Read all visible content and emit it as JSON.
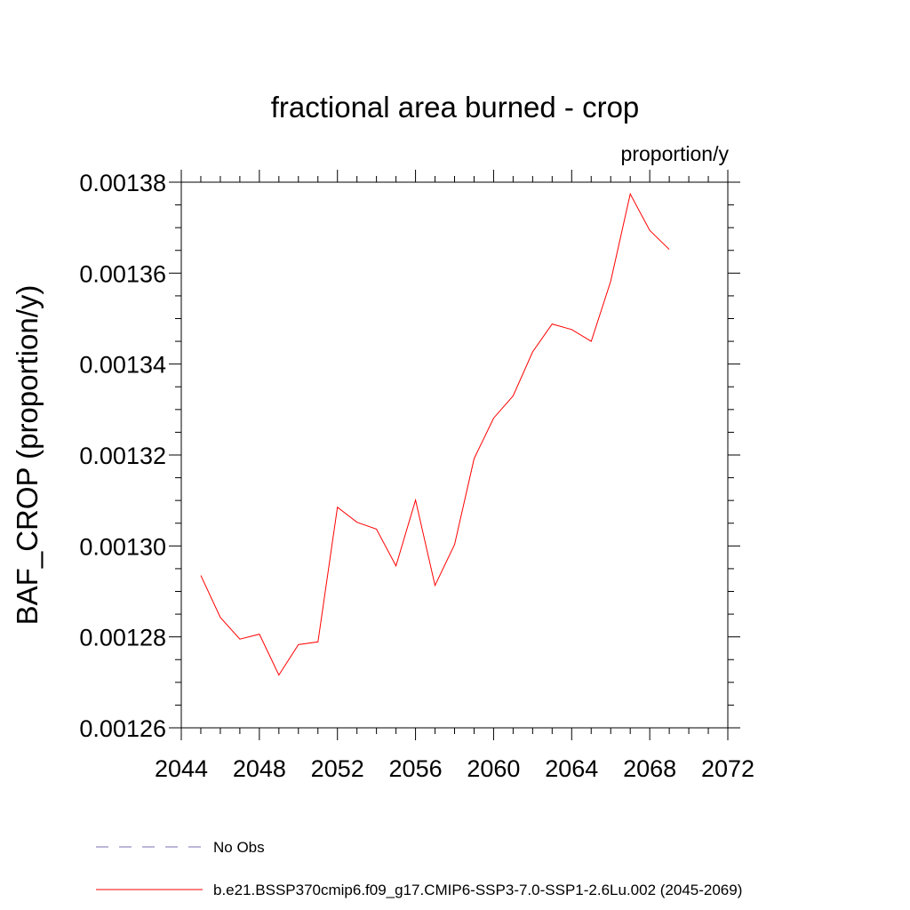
{
  "chart_data": {
    "type": "line",
    "title": "fractional area burned - crop",
    "units": "proportion/y",
    "xlabel": "",
    "ylabel": "BAF_CROP  (proportion/y)",
    "xlim": [
      2044,
      2072
    ],
    "ylim": [
      0.00126,
      0.00138
    ],
    "xticks": [
      2044,
      2048,
      2052,
      2056,
      2060,
      2064,
      2068,
      2072
    ],
    "xtick_labels": [
      "2044",
      "2048",
      "2052",
      "2056",
      "2060",
      "2064",
      "2068",
      "2072"
    ],
    "yticks": [
      0.00126,
      0.00128,
      0.0013,
      0.00132,
      0.00134,
      0.00136,
      0.00138
    ],
    "ytick_labels": [
      "0.00126",
      "0.00128",
      "0.00130",
      "0.00132",
      "0.00134",
      "0.00136",
      "0.00138"
    ],
    "grid": false,
    "legend_position": "bottom",
    "series": [
      {
        "name": "b.e21.BSSP370cmip6.f09_g17.CMIP6-SSP3-7.0-SSP1-2.6Lu.002 (2045-2069)",
        "color": "#ff0000",
        "dash": "solid",
        "x": [
          2045,
          2046,
          2047,
          2048,
          2049,
          2050,
          2051,
          2052,
          2053,
          2054,
          2055,
          2056,
          2057,
          2058,
          2059,
          2060,
          2061,
          2062,
          2063,
          2064,
          2065,
          2066,
          2067,
          2068,
          2069
        ],
        "values": [
          0.0012935,
          0.0012843,
          0.0012795,
          0.0012806,
          0.0012716,
          0.0012783,
          0.0012789,
          0.0013085,
          0.0013052,
          0.0013037,
          0.0012956,
          0.0013101,
          0.0012913,
          0.0013003,
          0.0013192,
          0.0013281,
          0.001333,
          0.0013427,
          0.0013488,
          0.0013476,
          0.001345,
          0.0013582,
          0.0013774,
          0.0013694,
          0.0013652
        ]
      }
    ],
    "legend": [
      {
        "label": "No Obs",
        "color": "#7b6fb5",
        "dash": "dashed"
      },
      {
        "label": "b.e21.BSSP370cmip6.f09_g17.CMIP6-SSP3-7.0-SSP1-2.6Lu.002 (2045-2069)",
        "color": "#ff0000",
        "dash": "solid"
      }
    ]
  }
}
